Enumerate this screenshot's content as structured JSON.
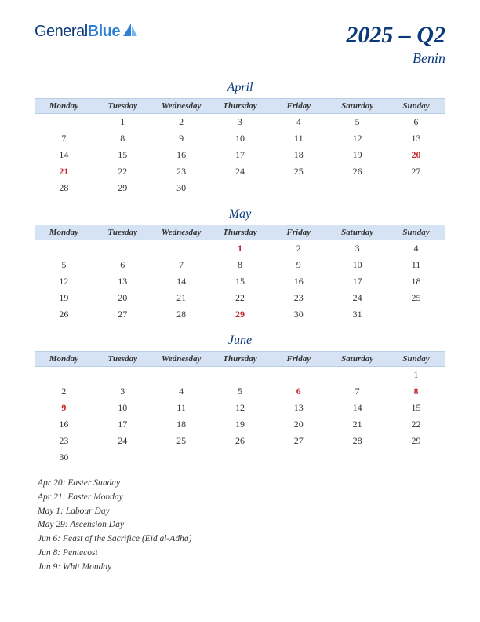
{
  "logo": {
    "text1": "General",
    "text2": "Blue"
  },
  "title": {
    "main": "2025 – Q2",
    "sub": "Benin"
  },
  "colors": {
    "brand_dark": "#0b3a7a",
    "brand_light": "#2b7fd4",
    "header_bg": "#d6e3f5",
    "header_border": "#b9cce8",
    "holiday": "#c1272d",
    "text": "#333333",
    "background": "#ffffff"
  },
  "typography": {
    "title_fontsize": 30,
    "subtitle_fontsize": 18,
    "month_fontsize": 16,
    "header_fontsize": 11,
    "cell_fontsize": 12,
    "holiday_fontsize": 11.5
  },
  "weekdays": [
    "Monday",
    "Tuesday",
    "Wednesday",
    "Thursday",
    "Friday",
    "Saturday",
    "Sunday"
  ],
  "months": [
    {
      "name": "April",
      "weeks": [
        [
          "",
          "1",
          "2",
          "3",
          "4",
          "5",
          "6"
        ],
        [
          "7",
          "8",
          "9",
          "10",
          "11",
          "12",
          "13"
        ],
        [
          "14",
          "15",
          "16",
          "17",
          "18",
          "19",
          "20"
        ],
        [
          "21",
          "22",
          "23",
          "24",
          "25",
          "26",
          "27"
        ],
        [
          "28",
          "29",
          "30",
          "",
          "",
          "",
          ""
        ]
      ],
      "holidays": [
        "20",
        "21"
      ]
    },
    {
      "name": "May",
      "weeks": [
        [
          "",
          "",
          "",
          "1",
          "2",
          "3",
          "4"
        ],
        [
          "5",
          "6",
          "7",
          "8",
          "9",
          "10",
          "11"
        ],
        [
          "12",
          "13",
          "14",
          "15",
          "16",
          "17",
          "18"
        ],
        [
          "19",
          "20",
          "21",
          "22",
          "23",
          "24",
          "25"
        ],
        [
          "26",
          "27",
          "28",
          "29",
          "30",
          "31",
          ""
        ]
      ],
      "holidays": [
        "1",
        "29"
      ]
    },
    {
      "name": "June",
      "weeks": [
        [
          "",
          "",
          "",
          "",
          "",
          "",
          "1"
        ],
        [
          "2",
          "3",
          "4",
          "5",
          "6",
          "7",
          "8"
        ],
        [
          "9",
          "10",
          "11",
          "12",
          "13",
          "14",
          "15"
        ],
        [
          "16",
          "17",
          "18",
          "19",
          "20",
          "21",
          "22"
        ],
        [
          "23",
          "24",
          "25",
          "26",
          "27",
          "28",
          "29"
        ],
        [
          "30",
          "",
          "",
          "",
          "",
          "",
          ""
        ]
      ],
      "holidays": [
        "6",
        "8",
        "9"
      ]
    }
  ],
  "holiday_list": [
    "Apr 20: Easter Sunday",
    "Apr 21: Easter Monday",
    "May 1: Labour Day",
    "May 29: Ascension Day",
    "Jun 6: Feast of the Sacrifice (Eid al-Adha)",
    "Jun 8: Pentecost",
    "Jun 9: Whit Monday"
  ]
}
